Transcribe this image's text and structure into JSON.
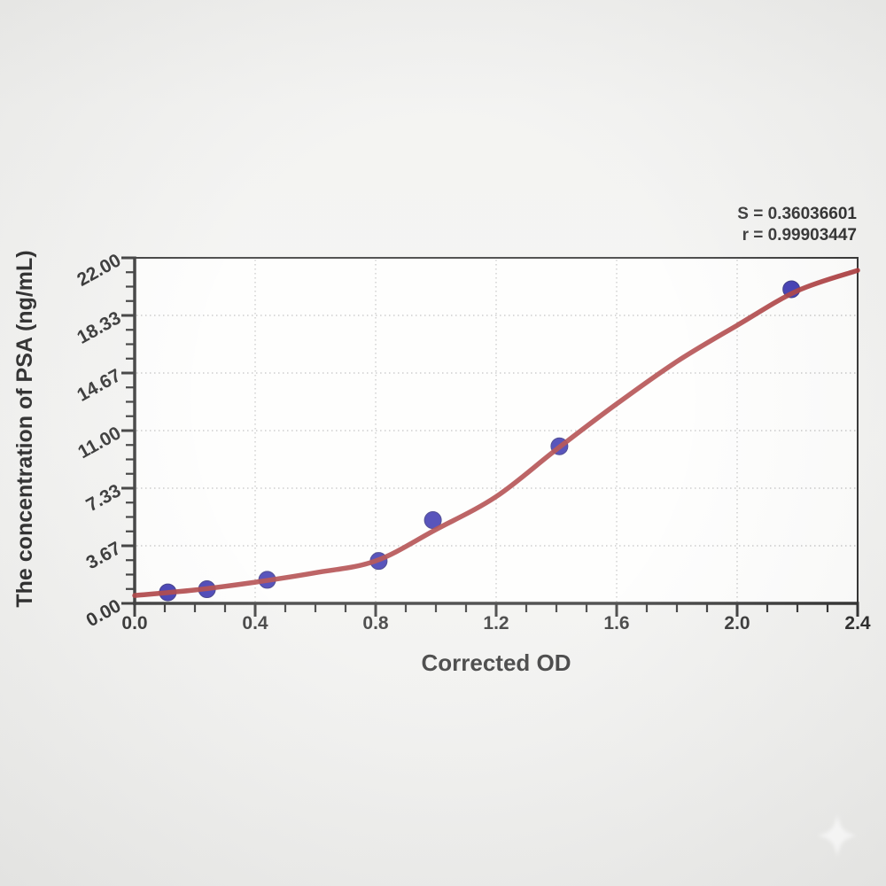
{
  "annotation": {
    "s_line": "S = 0.36036601",
    "r_line": "r = 0.99903447"
  },
  "chart_data": {
    "type": "scatter",
    "title": "",
    "xlabel": "Corrected OD",
    "ylabel": "The concentration of PSA (ng/mL)",
    "xlim": [
      0.0,
      2.4
    ],
    "ylim": [
      0.0,
      22.0
    ],
    "x_major_tick_step": 0.4,
    "x_minor_tick_step": 0.1,
    "x_tick_labels": [
      "0.0",
      "0.4",
      "0.8",
      "1.2",
      "1.6",
      "2.0",
      "2.4"
    ],
    "y_major_tick_step": 3.6667,
    "y_minor_tick_step": 0.9167,
    "y_tick_labels": [
      "0.00",
      "3.67",
      "7.33",
      "11.00",
      "14.67",
      "18.33",
      "22.00"
    ],
    "grid": "dotted lines at major ticks",
    "legend": "none",
    "series": [
      {
        "name": "standard-points",
        "type": "scatter",
        "x": [
          0.11,
          0.24,
          0.44,
          0.81,
          0.99,
          1.41,
          2.18
        ],
        "y": [
          0.7,
          0.9,
          1.5,
          2.7,
          5.3,
          10.0,
          20.0
        ]
      },
      {
        "name": "fitted-curve",
        "type": "line",
        "points": [
          [
            0.0,
            0.5
          ],
          [
            0.2,
            0.85
          ],
          [
            0.4,
            1.35
          ],
          [
            0.6,
            1.95
          ],
          [
            0.8,
            2.7
          ],
          [
            1.0,
            4.7
          ],
          [
            1.2,
            6.8
          ],
          [
            1.4,
            9.8
          ],
          [
            1.6,
            12.7
          ],
          [
            1.8,
            15.4
          ],
          [
            2.0,
            17.7
          ],
          [
            2.2,
            19.9
          ],
          [
            2.4,
            21.2
          ]
        ]
      }
    ],
    "stats": {
      "S": "0.36036601",
      "r": "0.99903447"
    },
    "colors": {
      "curve": "#a02123",
      "points": "#221ca6",
      "grid": "#bfbfbf",
      "axis": "#1b1b1b",
      "plot_bg": "#fdfdfc",
      "page_bg": "#efefed",
      "text": "#161616",
      "watermark": "#ffffff"
    }
  }
}
